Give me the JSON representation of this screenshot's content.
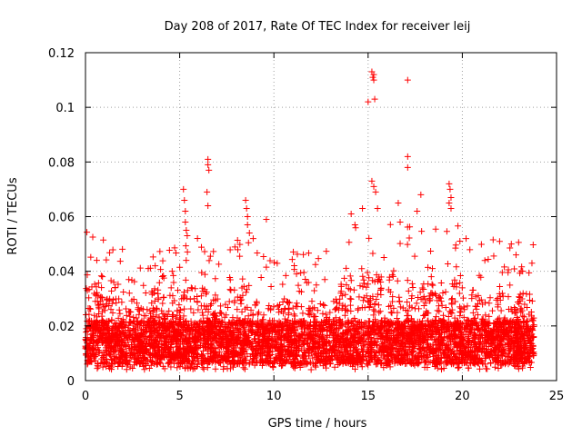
{
  "chart_data": {
    "type": "scatter",
    "title": "Day 208 of 2017, Rate Of TEC Index for receiver leij",
    "xlabel": "GPS time / hours",
    "ylabel": "ROTI / TECUs",
    "xlim": [
      0,
      25
    ],
    "ylim": [
      0,
      0.12
    ],
    "xticks": [
      0,
      5,
      10,
      15,
      20,
      25
    ],
    "xtick_labels": [
      "0",
      "5",
      "10",
      "15",
      "20",
      "25"
    ],
    "yticks": [
      0,
      0.02,
      0.04,
      0.06,
      0.08,
      0.1,
      0.12
    ],
    "ytick_labels": [
      "0",
      "0.02",
      "0.04",
      "0.06",
      "0.08",
      "0.1",
      "0.12"
    ],
    "grid": true,
    "marker": "+",
    "color": "#ff0000",
    "series": [
      {
        "name": "ROTI",
        "bulk_band": {
          "x_range": [
            0,
            23.8
          ],
          "y_typical": [
            0.005,
            0.03
          ],
          "note": "dense cloud of several thousand points"
        },
        "points": [
          {
            "x": 0.1,
            "y": 0.033
          },
          {
            "x": 0.6,
            "y": 0.044
          },
          {
            "x": 0.9,
            "y": 0.038
          },
          {
            "x": 1.5,
            "y": 0.036
          },
          {
            "x": 2.3,
            "y": 0.037
          },
          {
            "x": 3.7,
            "y": 0.042
          },
          {
            "x": 4.6,
            "y": 0.04
          },
          {
            "x": 5.2,
            "y": 0.07
          },
          {
            "x": 5.25,
            "y": 0.066
          },
          {
            "x": 5.3,
            "y": 0.062
          },
          {
            "x": 5.3,
            "y": 0.058
          },
          {
            "x": 5.35,
            "y": 0.055
          },
          {
            "x": 5.4,
            "y": 0.053
          },
          {
            "x": 6.5,
            "y": 0.081
          },
          {
            "x": 6.5,
            "y": 0.079
          },
          {
            "x": 6.55,
            "y": 0.077
          },
          {
            "x": 6.45,
            "y": 0.069
          },
          {
            "x": 6.5,
            "y": 0.064
          },
          {
            "x": 8.5,
            "y": 0.066
          },
          {
            "x": 8.55,
            "y": 0.063
          },
          {
            "x": 8.6,
            "y": 0.06
          },
          {
            "x": 8.6,
            "y": 0.057
          },
          {
            "x": 8.7,
            "y": 0.054
          },
          {
            "x": 8.9,
            "y": 0.052
          },
          {
            "x": 9.6,
            "y": 0.059
          },
          {
            "x": 11.2,
            "y": 0.039
          },
          {
            "x": 12.7,
            "y": 0.037
          },
          {
            "x": 14.1,
            "y": 0.061
          },
          {
            "x": 14.3,
            "y": 0.057
          },
          {
            "x": 14.7,
            "y": 0.063
          },
          {
            "x": 15.0,
            "y": 0.102
          },
          {
            "x": 15.2,
            "y": 0.113
          },
          {
            "x": 15.25,
            "y": 0.111
          },
          {
            "x": 15.3,
            "y": 0.112
          },
          {
            "x": 15.3,
            "y": 0.11
          },
          {
            "x": 15.35,
            "y": 0.103
          },
          {
            "x": 15.2,
            "y": 0.073
          },
          {
            "x": 15.3,
            "y": 0.071
          },
          {
            "x": 15.4,
            "y": 0.069
          },
          {
            "x": 15.5,
            "y": 0.063
          },
          {
            "x": 16.6,
            "y": 0.065
          },
          {
            "x": 16.7,
            "y": 0.058
          },
          {
            "x": 17.1,
            "y": 0.11
          },
          {
            "x": 17.1,
            "y": 0.082
          },
          {
            "x": 17.1,
            "y": 0.078
          },
          {
            "x": 17.8,
            "y": 0.068
          },
          {
            "x": 17.6,
            "y": 0.062
          },
          {
            "x": 19.3,
            "y": 0.072
          },
          {
            "x": 19.35,
            "y": 0.07
          },
          {
            "x": 19.4,
            "y": 0.067
          },
          {
            "x": 19.3,
            "y": 0.065
          },
          {
            "x": 19.4,
            "y": 0.063
          },
          {
            "x": 20.2,
            "y": 0.052
          },
          {
            "x": 22.6,
            "y": 0.05
          },
          {
            "x": 23.2,
            "y": 0.04
          }
        ]
      }
    ]
  }
}
